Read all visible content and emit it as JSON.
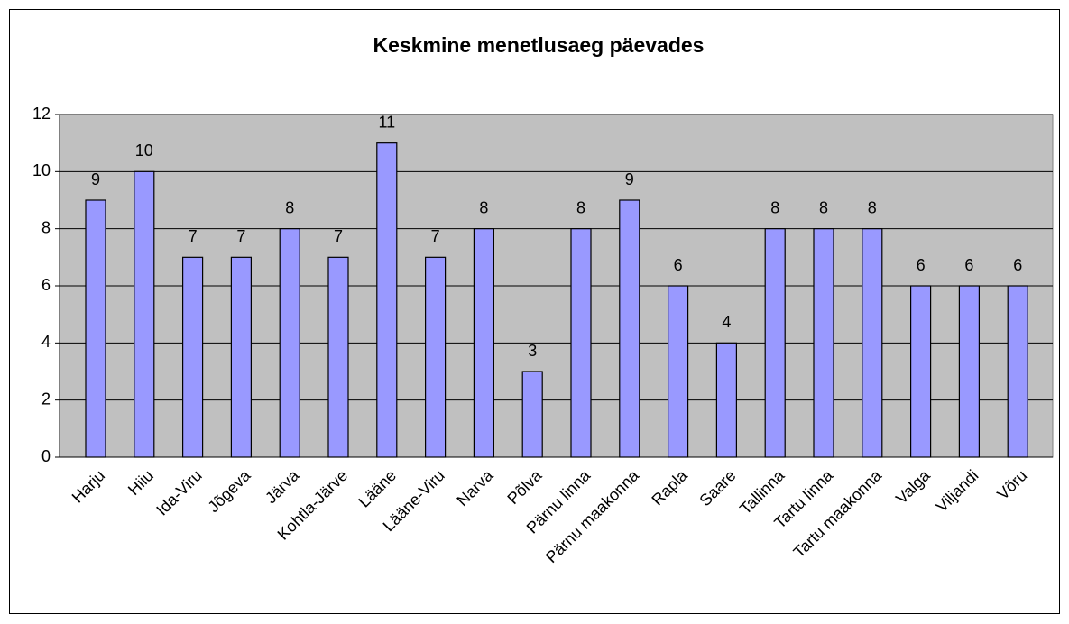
{
  "chart_data": {
    "type": "bar",
    "title": "Keskmine menetlusaeg päevades",
    "categories": [
      "Harju",
      "Hiiu",
      "Ida-Viru",
      "Jõgeva",
      "Järva",
      "Kohtla-Järve",
      "Lääne",
      "Lääne-Viru",
      "Narva",
      "Põlva",
      "Pärnu linna",
      "Pärnu maakonna",
      "Rapla",
      "Saare",
      "Tallinna",
      "Tartu linna",
      "Tartu maakonna",
      "Valga",
      "Viljandi",
      "Võru"
    ],
    "values": [
      9,
      10,
      7,
      7,
      8,
      7,
      11,
      7,
      8,
      3,
      8,
      9,
      6,
      4,
      8,
      8,
      8,
      6,
      6,
      6
    ],
    "color": "#9999ff",
    "ylim": [
      0,
      12
    ],
    "yticks": [
      0,
      2,
      4,
      6,
      8,
      10,
      12
    ],
    "grid": true
  }
}
